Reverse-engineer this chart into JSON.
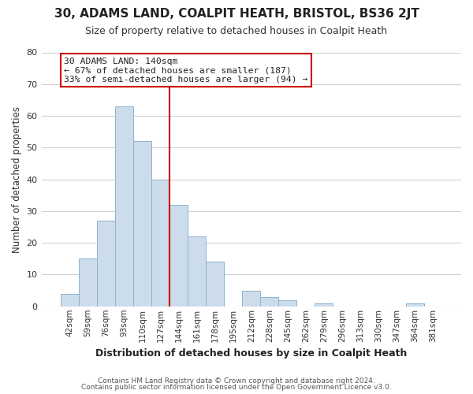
{
  "title": "30, ADAMS LAND, COALPIT HEATH, BRISTOL, BS36 2JT",
  "subtitle": "Size of property relative to detached houses in Coalpit Heath",
  "xlabel": "Distribution of detached houses by size in Coalpit Heath",
  "ylabel": "Number of detached properties",
  "bar_labels": [
    "42sqm",
    "59sqm",
    "76sqm",
    "93sqm",
    "110sqm",
    "127sqm",
    "144sqm",
    "161sqm",
    "178sqm",
    "195sqm",
    "212sqm",
    "228sqm",
    "245sqm",
    "262sqm",
    "279sqm",
    "296sqm",
    "313sqm",
    "330sqm",
    "347sqm",
    "364sqm",
    "381sqm"
  ],
  "bar_values": [
    4,
    15,
    27,
    63,
    52,
    40,
    32,
    22,
    14,
    0,
    5,
    3,
    2,
    0,
    1,
    0,
    0,
    0,
    0,
    1,
    0
  ],
  "bar_color": "#cddceb",
  "bar_edge_color": "#8ab4d4",
  "vline_color": "#cc0000",
  "annotation_title": "30 ADAMS LAND: 140sqm",
  "annotation_line1": "← 67% of detached houses are smaller (187)",
  "annotation_line2": "33% of semi-detached houses are larger (94) →",
  "annotation_box_color": "#ffffff",
  "annotation_box_edge": "#cc0000",
  "ylim": [
    0,
    80
  ],
  "yticks": [
    0,
    10,
    20,
    30,
    40,
    50,
    60,
    70,
    80
  ],
  "footer1": "Contains HM Land Registry data © Crown copyright and database right 2024.",
  "footer2": "Contains public sector information licensed under the Open Government Licence v3.0.",
  "bg_color": "#ffffff",
  "title_fontsize": 11,
  "subtitle_fontsize": 9,
  "ylabel_fontsize": 8.5,
  "xlabel_fontsize": 9,
  "tick_labelsize": 7.5,
  "footer_fontsize": 6.5
}
